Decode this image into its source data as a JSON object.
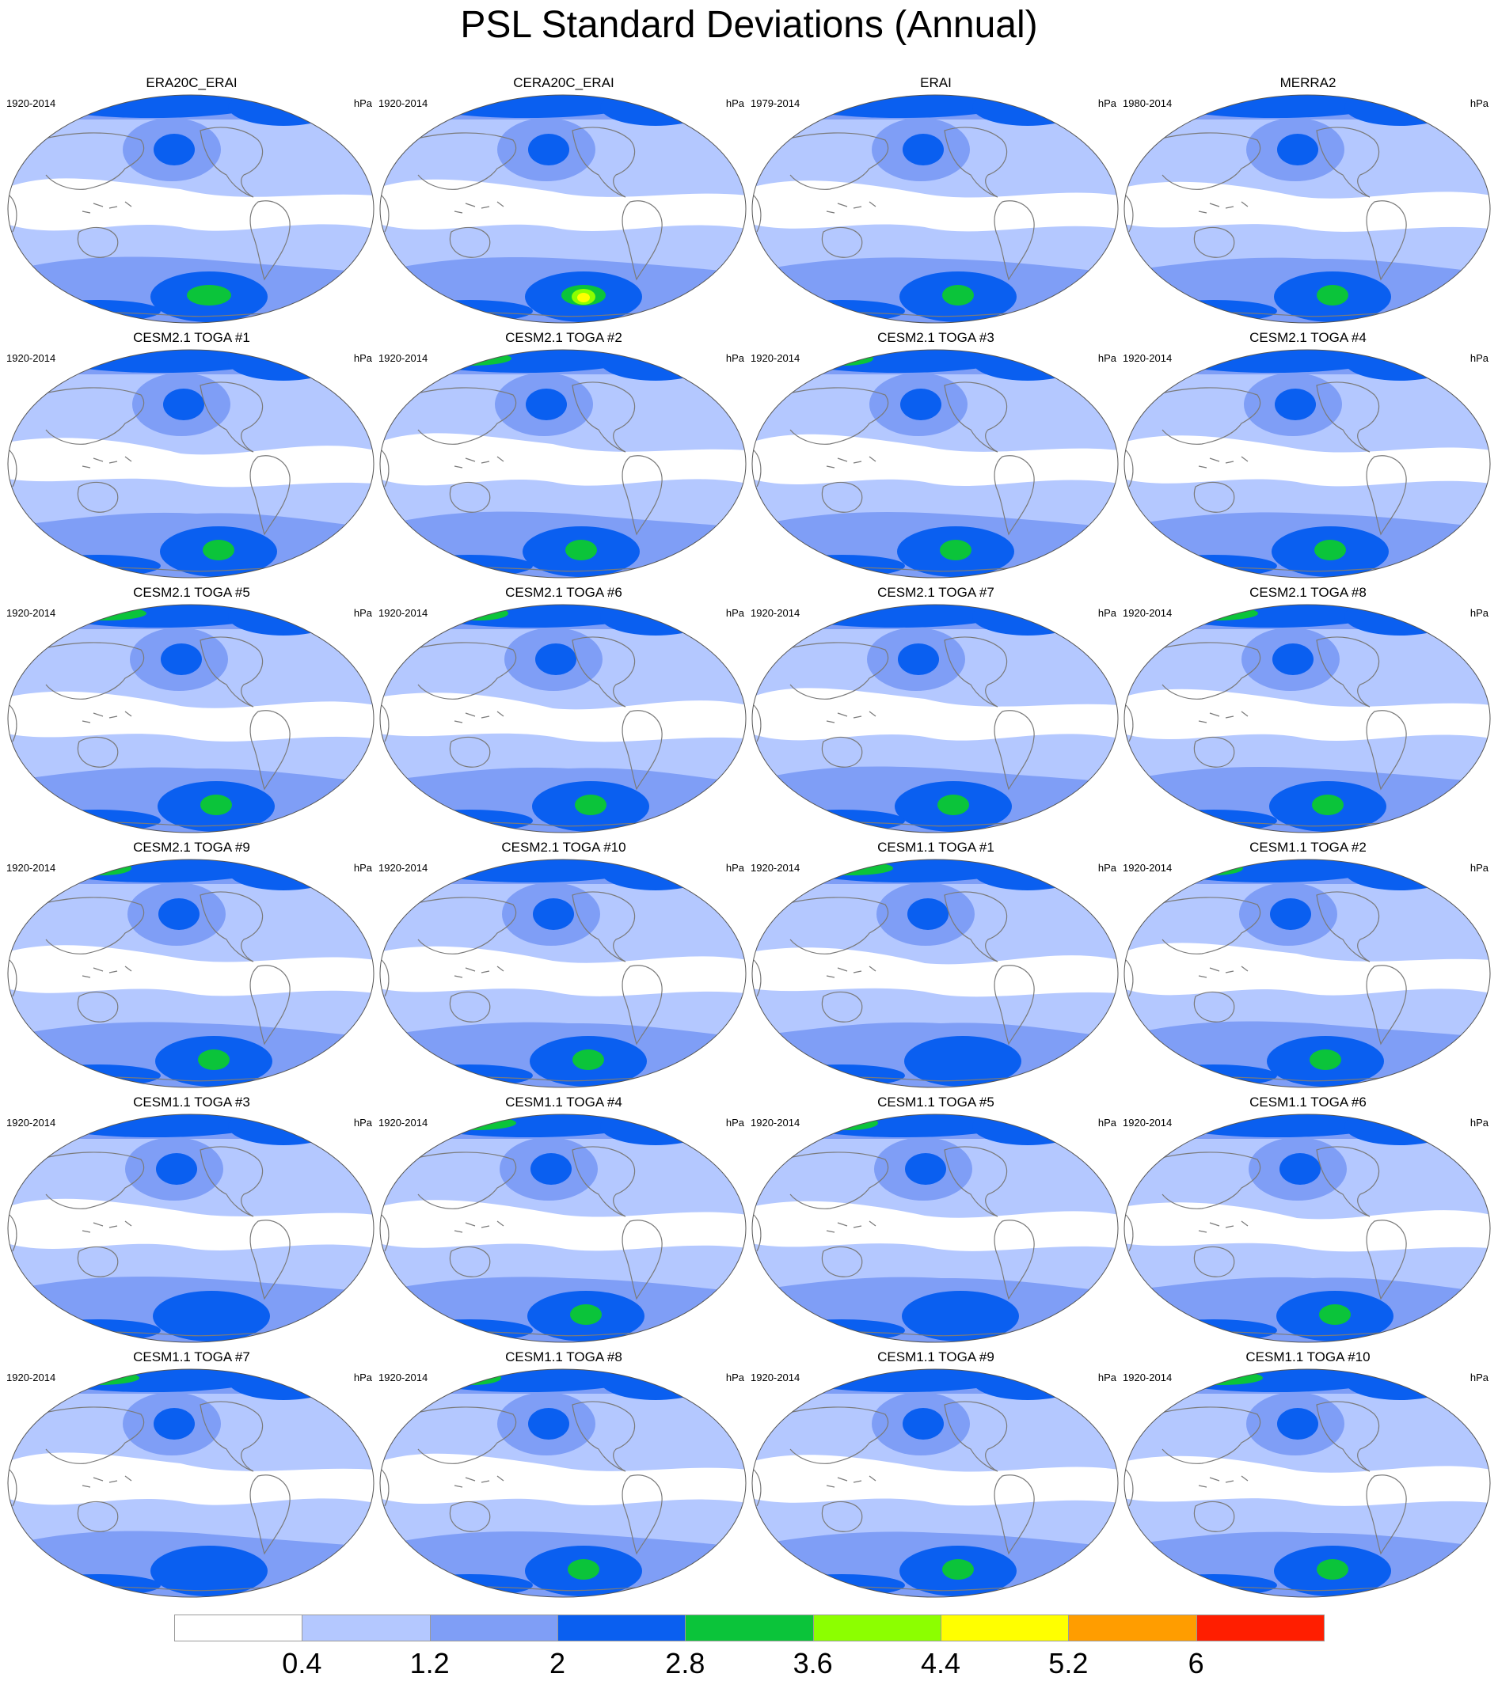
{
  "title": "PSL Standard Deviations (Annual)",
  "units": "hPa",
  "colorbar": {
    "levels": [
      "0.4",
      "1.2",
      "2",
      "2.8",
      "3.6",
      "4.4",
      "5.2",
      "6"
    ],
    "colors": [
      "#ffffff",
      "#b4c8ff",
      "#7f9ef6",
      "#0a5ff0",
      "#0bc43a",
      "#8cff00",
      "#ffff00",
      "#ff9d00",
      "#ff1e00"
    ]
  },
  "panels": [
    {
      "name": "ERA20C_ERAI",
      "years": "1920-2014"
    },
    {
      "name": "CERA20C_ERAI",
      "years": "1920-2014"
    },
    {
      "name": "ERAI",
      "years": "1979-2014"
    },
    {
      "name": "MERRA2",
      "years": "1980-2014"
    },
    {
      "name": "CESM2.1 TOGA #1",
      "years": "1920-2014"
    },
    {
      "name": "CESM2.1 TOGA #2",
      "years": "1920-2014"
    },
    {
      "name": "CESM2.1 TOGA #3",
      "years": "1920-2014"
    },
    {
      "name": "CESM2.1 TOGA #4",
      "years": "1920-2014"
    },
    {
      "name": "CESM2.1 TOGA #5",
      "years": "1920-2014"
    },
    {
      "name": "CESM2.1 TOGA #6",
      "years": "1920-2014"
    },
    {
      "name": "CESM2.1 TOGA #7",
      "years": "1920-2014"
    },
    {
      "name": "CESM2.1 TOGA #8",
      "years": "1920-2014"
    },
    {
      "name": "CESM2.1 TOGA #9",
      "years": "1920-2014"
    },
    {
      "name": "CESM2.1 TOGA #10",
      "years": "1920-2014"
    },
    {
      "name": "CESM1.1 TOGA #1",
      "years": "1920-2014"
    },
    {
      "name": "CESM1.1 TOGA #2",
      "years": "1920-2014"
    },
    {
      "name": "CESM1.1 TOGA #3",
      "years": "1920-2014"
    },
    {
      "name": "CESM1.1 TOGA #4",
      "years": "1920-2014"
    },
    {
      "name": "CESM1.1 TOGA #5",
      "years": "1920-2014"
    },
    {
      "name": "CESM1.1 TOGA #6",
      "years": "1920-2014"
    },
    {
      "name": "CESM1.1 TOGA #7",
      "years": "1920-2014"
    },
    {
      "name": "CESM1.1 TOGA #8",
      "years": "1920-2014"
    },
    {
      "name": "CESM1.1 TOGA #9",
      "years": "1920-2014"
    },
    {
      "name": "CESM1.1 TOGA #10",
      "years": "1920-2014"
    }
  ]
}
